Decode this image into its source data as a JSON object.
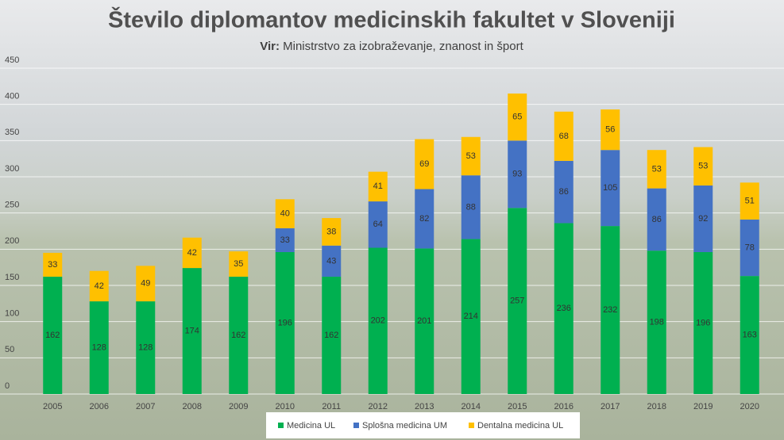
{
  "chart_data": {
    "type": "stacked_bar",
    "title": "Število diplomantov medicinskih fakultet v Sloveniji",
    "subtitle_label": "Vir:",
    "subtitle": "Ministrstvo za izobraževanje, znanost in šport",
    "categories": [
      "2005",
      "2006",
      "2007",
      "2008",
      "2009",
      "2010",
      "2011",
      "2012",
      "2013",
      "2014",
      "2015",
      "2016",
      "2017",
      "2018",
      "2019",
      "2020"
    ],
    "series": [
      {
        "name": "Medicina UL",
        "color": "#00b050",
        "values": [
          162,
          128,
          128,
          174,
          162,
          196,
          162,
          202,
          201,
          214,
          257,
          236,
          232,
          198,
          196,
          163
        ]
      },
      {
        "name": "Splošna medicina UM",
        "color": "#4472c4",
        "values": [
          null,
          null,
          null,
          null,
          null,
          33,
          43,
          64,
          82,
          88,
          93,
          86,
          105,
          86,
          92,
          78
        ]
      },
      {
        "name": "Dentalna medicina UL",
        "color": "#ffc000",
        "values": [
          33,
          42,
          49,
          42,
          35,
          40,
          38,
          41,
          69,
          53,
          65,
          68,
          56,
          53,
          53,
          51
        ]
      }
    ],
    "ylim": [
      0,
      450
    ],
    "yticks": [
      0,
      50,
      100,
      150,
      200,
      250,
      300,
      350,
      400,
      450
    ],
    "grid": true,
    "legend": "bottom"
  }
}
